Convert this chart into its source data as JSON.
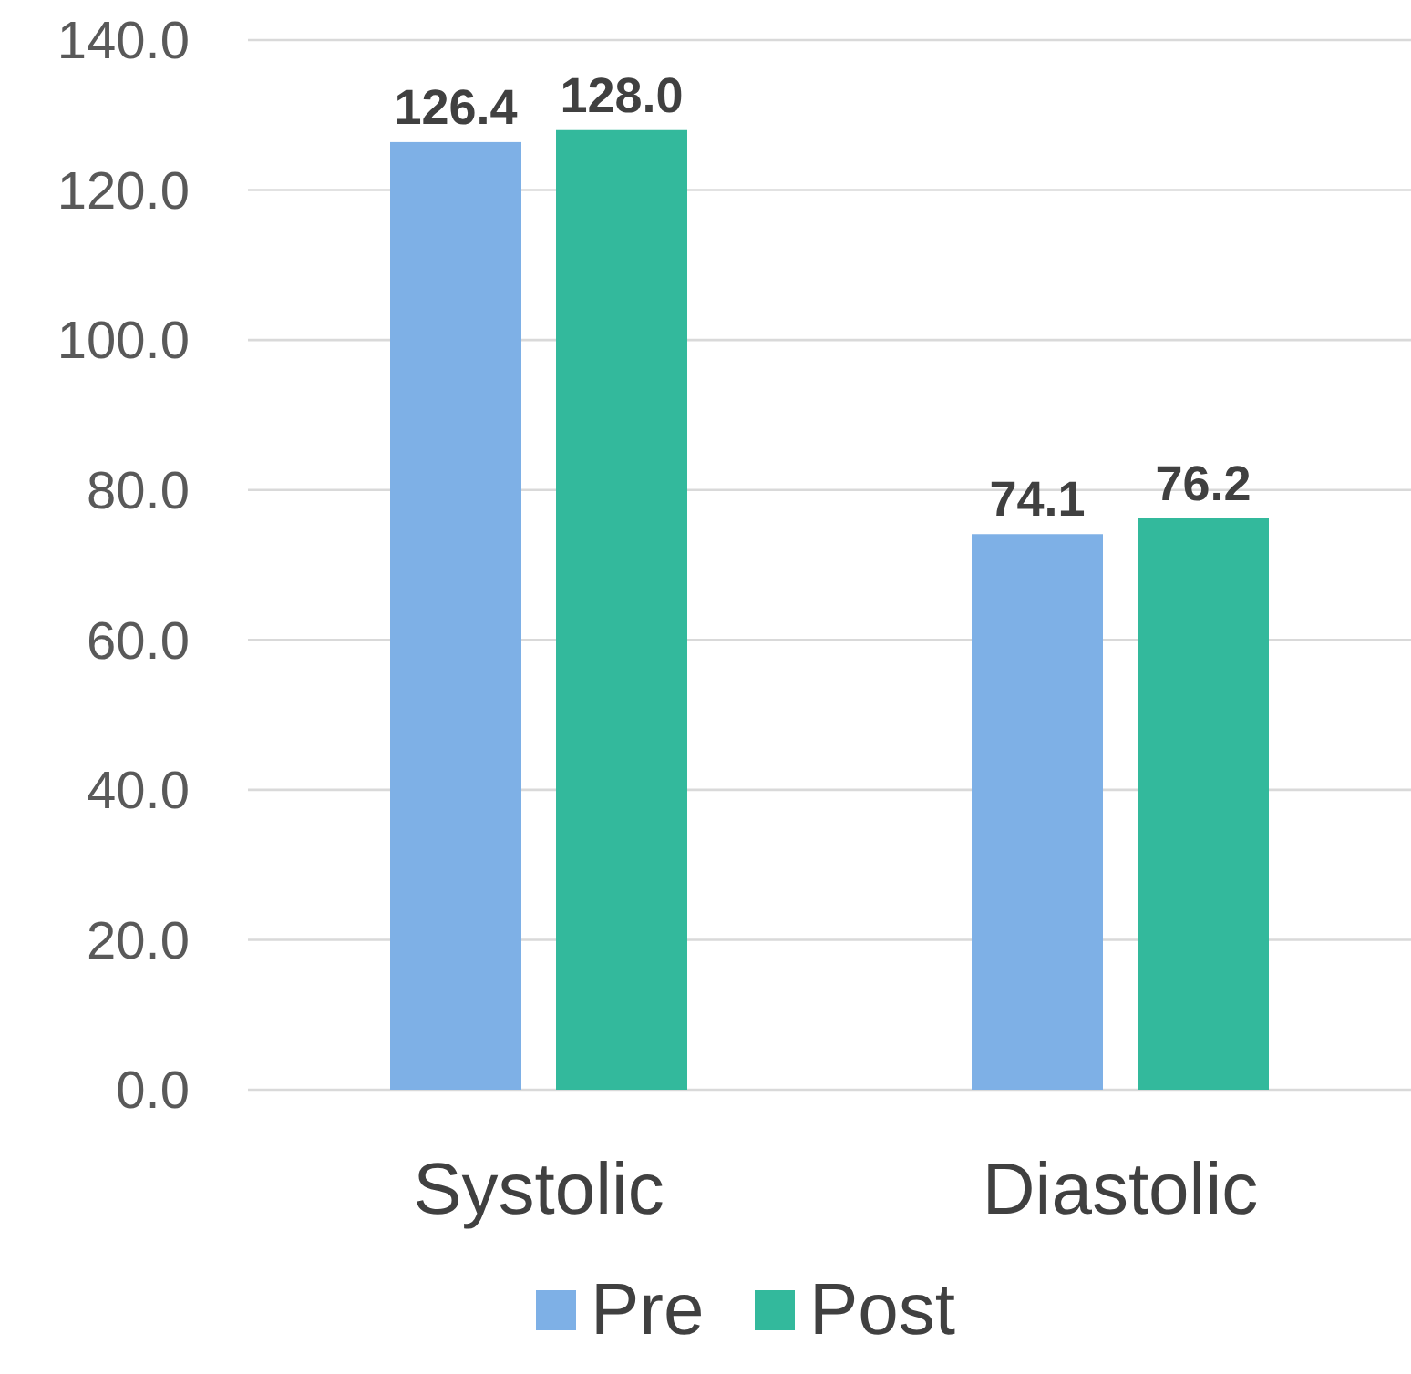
{
  "chart_data": {
    "type": "bar",
    "categories": [
      "Systolic",
      "Diastolic"
    ],
    "series": [
      {
        "name": "Pre",
        "color": "#7eb0e6",
        "values": [
          126.4,
          74.1
        ],
        "value_labels": [
          "126.4",
          "74.1"
        ]
      },
      {
        "name": "Post",
        "color": "#33b99c",
        "values": [
          128.0,
          76.2
        ],
        "value_labels": [
          "128.0",
          "76.2"
        ]
      }
    ],
    "ylim": [
      0,
      140
    ],
    "yticks": [
      {
        "value": 0,
        "label": "0.0"
      },
      {
        "value": 20,
        "label": "20.0"
      },
      {
        "value": 40,
        "label": "40.0"
      },
      {
        "value": 60,
        "label": "60.0"
      },
      {
        "value": 80,
        "label": "80.0"
      },
      {
        "value": 100,
        "label": "100.0"
      },
      {
        "value": 120,
        "label": "120.0"
      },
      {
        "value": 140,
        "label": "140.0"
      }
    ],
    "grid": "y",
    "legend": "bottom"
  }
}
